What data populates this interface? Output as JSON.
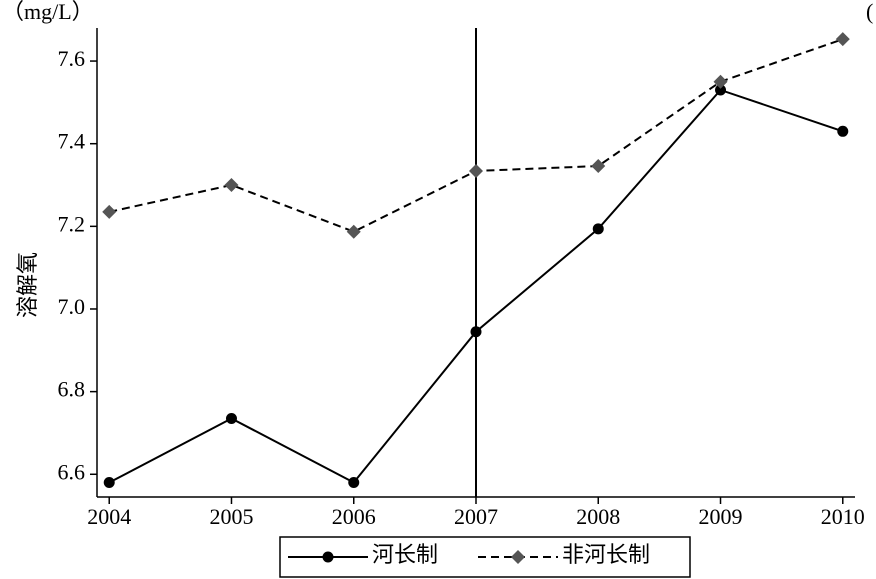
{
  "chart_data": {
    "type": "line",
    "y_unit_label": "（mg/L）",
    "right_corner_text": "(",
    "ylabel": "溶解氧",
    "x": [
      2004,
      2005,
      2006,
      2007,
      2008,
      2009,
      2010
    ],
    "xlim": [
      2003.9,
      2010.1
    ],
    "xticks": [
      2004,
      2005,
      2006,
      2007,
      2008,
      2009,
      2010
    ],
    "ylim": [
      6.545,
      7.68
    ],
    "yticks": [
      {
        "value": 6.6,
        "label": "6.6"
      },
      {
        "value": 6.8,
        "label": "6.8"
      },
      {
        "value": 7.0,
        "label": "7.0"
      },
      {
        "value": 7.2,
        "label": "7.2"
      },
      {
        "value": 7.4,
        "label": "7.4"
      },
      {
        "value": 7.6,
        "label": "7.6"
      }
    ],
    "vline": 2007,
    "legend": "bottom",
    "series": [
      {
        "name": "河长制",
        "color": "#000000",
        "marker": "circle",
        "dash": false,
        "values": [
          6.58,
          6.735,
          6.58,
          6.945,
          7.194,
          7.53,
          7.43
        ]
      },
      {
        "name": "非河长制",
        "color": "#555555",
        "marker": "diamond",
        "dash": true,
        "values": [
          7.235,
          7.3,
          7.187,
          7.334,
          7.346,
          7.55,
          7.653
        ]
      }
    ]
  }
}
